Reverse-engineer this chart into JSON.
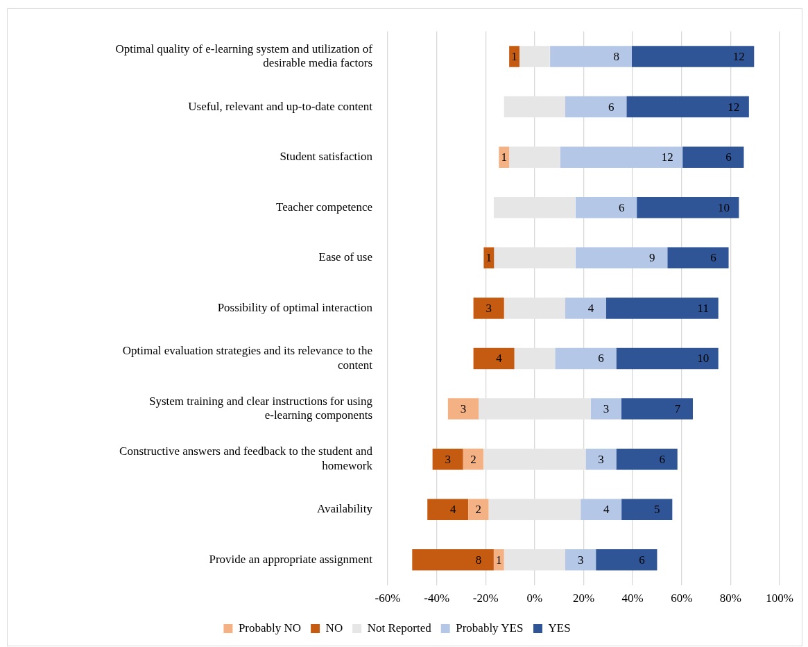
{
  "chart_data": {
    "type": "bar",
    "orientation": "horizontal",
    "categories": [
      "Optimal quality of e-learning system and utilization of desirable media factors",
      "Useful, relevant and up-to-date content",
      "Student satisfaction",
      "Teacher competence",
      "Ease of use",
      "Possibility of optimal interaction",
      "Optimal evaluation strategies and its relevance to the content",
      "System training and clear instructions for using e-learning components",
      "Constructive answers and feedback to the student and homework",
      "Availability",
      "Provide an appropriate assignment"
    ],
    "series": [
      {
        "name": "Probably NO",
        "color": "#f4b183",
        "base": [
          null,
          null,
          -14.6,
          null,
          null,
          null,
          null,
          -35.4,
          -29.2,
          -27.1,
          -16.7
        ],
        "values": [
          null,
          null,
          4.2,
          null,
          null,
          null,
          null,
          12.5,
          8.3,
          8.3,
          4.2
        ]
      },
      {
        "name": "NO",
        "color": "#c55a11",
        "base": [
          -10.4,
          null,
          null,
          null,
          -20.8,
          -25,
          -25,
          null,
          -41.7,
          -43.8,
          -50
        ],
        "values": [
          4.2,
          null,
          null,
          null,
          4.2,
          12.5,
          16.7,
          null,
          12.5,
          16.7,
          33.3
        ]
      },
      {
        "name": "Not Reported",
        "color": "#e7e6e6",
        "base": [
          -6.3,
          -12.5,
          -10.4,
          -16.7,
          -16.7,
          -12.5,
          -8.3,
          -22.9,
          -20.8,
          -18.8,
          -12.5
        ],
        "values": [
          12.5,
          25,
          20.8,
          33.3,
          33.3,
          25,
          16.7,
          45.8,
          41.7,
          37.5,
          25
        ]
      },
      {
        "name": "Probably YES",
        "color": "#b4c7e7",
        "base": [
          6.3,
          12.5,
          10.4,
          16.7,
          16.7,
          12.5,
          8.3,
          22.9,
          20.8,
          18.8,
          12.5
        ],
        "values": [
          33.3,
          25,
          50,
          25,
          37.5,
          16.7,
          25,
          12.5,
          12.5,
          16.7,
          12.5
        ]
      },
      {
        "name": "YES",
        "color": "#2f5597",
        "base": [
          39.6,
          37.5,
          60.4,
          41.7,
          54.2,
          29.2,
          33.3,
          35.4,
          33.3,
          35.4,
          25
        ],
        "values": [
          50,
          50,
          25,
          41.7,
          25,
          45.8,
          41.7,
          29.2,
          25,
          20.8,
          25
        ]
      }
    ],
    "annotations": [
      {
        "text": "1",
        "x": -6.2,
        "y": "Optimal quality of e-learning system and utilization of desirable media factors"
      },
      {
        "text": "8",
        "x": 39.6,
        "y": "Optimal quality of e-learning system and utilization of desirable media factors"
      },
      {
        "text": "12",
        "x": 89.6,
        "y": "Optimal quality of e-learning system and utilization of desirable media factors"
      },
      {
        "text": "6",
        "x": 37.5,
        "y": "Useful, relevant and up-to-date content"
      },
      {
        "text": "12",
        "x": 87.5,
        "y": "Useful, relevant and up-to-date content"
      },
      {
        "text": "1",
        "x": -10.4,
        "y": "Student satisfaction"
      },
      {
        "text": "12",
        "x": 60.4,
        "y": "Student satisfaction"
      },
      {
        "text": "6",
        "x": 85.4,
        "y": "Student satisfaction"
      },
      {
        "text": "6",
        "x": 41.7,
        "y": "Teacher competence"
      },
      {
        "text": "10",
        "x": 83.4,
        "y": "Teacher competence"
      },
      {
        "text": "1",
        "x": -16.6,
        "y": "Ease of use"
      },
      {
        "text": "9",
        "x": 54.2,
        "y": "Ease of use"
      },
      {
        "text": "6",
        "x": 79.2,
        "y": "Ease of use"
      },
      {
        "text": "3",
        "x": -12.5,
        "y": "Possibility of optimal interaction"
      },
      {
        "text": "4",
        "x": 29.2,
        "y": "Possibility of optimal interaction"
      },
      {
        "text": "11",
        "x": 75,
        "y": "Possibility of optimal interaction"
      },
      {
        "text": "4",
        "x": -8.3,
        "y": "Optimal evaluation strategies and its relevance to the content"
      },
      {
        "text": "6",
        "x": 33.3,
        "y": "Optimal evaluation strategies and its relevance to the content"
      },
      {
        "text": "10",
        "x": 75,
        "y": "Optimal evaluation strategies and its relevance to the content"
      },
      {
        "text": "3",
        "x": -22.9,
        "y": "System training and clear instructions for using e-learning components"
      },
      {
        "text": "3",
        "x": 35.4,
        "y": "System training and clear instructions for using e-learning components"
      },
      {
        "text": "7",
        "x": 64.6,
        "y": "System training and clear instructions for using e-learning components"
      },
      {
        "text": "3",
        "x": -29.2,
        "y": "Constructive answers and feedback to the student and homework"
      },
      {
        "text": "2",
        "x": -20.9,
        "y": "Constructive answers and feedback to the student and homework"
      },
      {
        "text": "3",
        "x": 33.3,
        "y": "Constructive answers and feedback to the student and homework"
      },
      {
        "text": "6",
        "x": 58.3,
        "y": "Constructive answers and feedback to the student and homework"
      },
      {
        "text": "4",
        "x": -27.1,
        "y": "Availability"
      },
      {
        "text": "2",
        "x": -18.8,
        "y": "Availability"
      },
      {
        "text": "4",
        "x": 35.5,
        "y": "Availability"
      },
      {
        "text": "5",
        "x": 56.2,
        "y": "Availability"
      },
      {
        "text": "8",
        "x": -16.7,
        "y": "Provide an appropriate assignment"
      },
      {
        "text": "1",
        "x": -12.5,
        "y": "Provide an appropriate assignment"
      },
      {
        "text": "3",
        "x": 25,
        "y": "Provide an appropriate assignment"
      },
      {
        "text": "6",
        "x": 50,
        "y": "Provide an appropriate assignment"
      }
    ],
    "xlim": [
      -60,
      100
    ],
    "xticks": [
      {
        "value": -60,
        "label": "-60%"
      },
      {
        "value": -40,
        "label": "-40%"
      },
      {
        "value": -20,
        "label": "-20%"
      },
      {
        "value": 0,
        "label": "0%"
      },
      {
        "value": 20,
        "label": "20%"
      },
      {
        "value": 40,
        "label": "40%"
      },
      {
        "value": 60,
        "label": "60%"
      },
      {
        "value": 80,
        "label": "80%"
      },
      {
        "value": 100,
        "label": "100%"
      }
    ],
    "grid": "x",
    "legend": "bottom"
  }
}
